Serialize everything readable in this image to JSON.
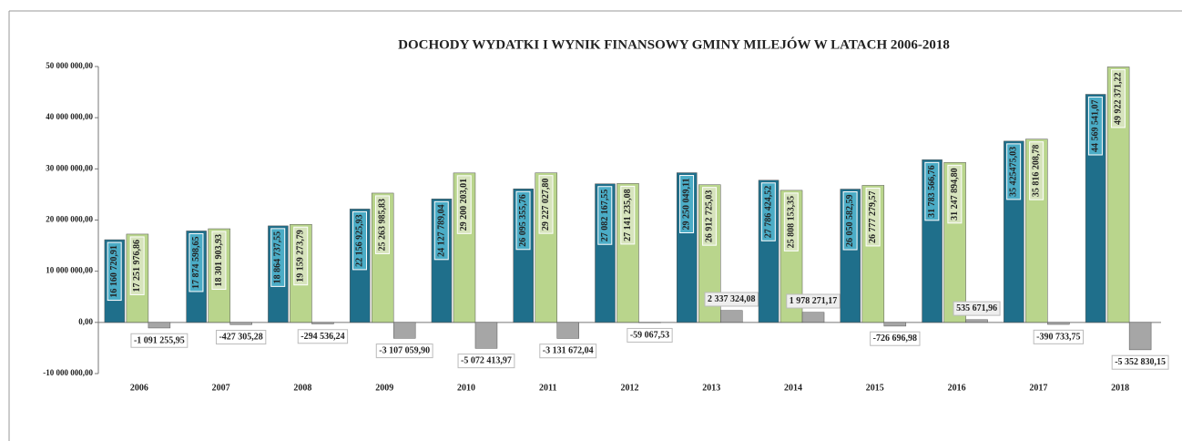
{
  "chart_data": {
    "type": "bar",
    "title": "DOCHODY WYDATKI I WYNIK FINANSOWY GMINY  MILEJÓW W LATACH 2006-2018",
    "categories": [
      "2006",
      "2007",
      "2008",
      "2009",
      "2010",
      "2011",
      "2012",
      "2013",
      "2014",
      "2015",
      "2016",
      "2017",
      "2018"
    ],
    "series": [
      {
        "color": "#1f6f8b",
        "values": [
          16160720.91,
          17874598.65,
          18864737.55,
          22156925.93,
          24127789.04,
          26095355.76,
          27082167.55,
          29250049.11,
          27786424.52,
          26050582.59,
          31783566.76,
          35425475.03,
          44569541.07
        ],
        "value_labels": [
          "16 160 720,91",
          "17 874 598,65",
          "18 864 737,55",
          "22 156 925,93",
          "24 127 789,04",
          "26 095 355,76",
          "27 082 167,55",
          "29 250 049,11",
          "27 786 424,52",
          "26 050 582,59",
          "31 783 566,76",
          "35 425475,03",
          "44 569 541,07"
        ]
      },
      {
        "color": "#b9d58c",
        "values": [
          17251976.86,
          18301903.93,
          19159273.79,
          25263985.83,
          29200203.01,
          29227027.8,
          27141235.08,
          26912725.03,
          25808153.35,
          26777279.57,
          31247894.8,
          35816208.78,
          49922371.22
        ],
        "value_labels": [
          "17 251 976,86",
          "18 301 903,93",
          "19 159 273,79",
          "25 263 985,83",
          "29 200 203,01",
          "29 227 027,80",
          "27 141 235,08",
          "26 912 725,03",
          "25 808 153,35",
          "26 777 279,57",
          "31 247 894,80",
          "35 816 208,78",
          "49 922 371,22"
        ]
      },
      {
        "color": "#a6a6a6",
        "values": [
          -1091255.95,
          -427305.28,
          -294536.24,
          -3107059.9,
          -5072413.97,
          -3131672.04,
          -59067.53,
          2337324.08,
          1978271.17,
          -726696.98,
          535671.96,
          -390733.75,
          -5352830.15
        ],
        "value_labels": [
          "-1 091 255,95",
          "-427 305,28",
          "-294 536,24",
          "-3 107 059,90",
          "-5 072 413,97",
          "-3 131 672,04",
          "-59 067,53",
          "2 337 324,08",
          "1 978 271,17",
          "-726 696,98",
          "535 671,96",
          "-390 733,75",
          "-5 352 830,15"
        ]
      }
    ],
    "ylim": [
      -10000000,
      50000000
    ],
    "yticks": [
      {
        "value": -10000000,
        "label": "-10 000 000,00"
      },
      {
        "value": 0,
        "label": "0,00"
      },
      {
        "value": 10000000,
        "label": "10 000 000,00"
      },
      {
        "value": 20000000,
        "label": "20 000 000,00"
      },
      {
        "value": 30000000,
        "label": "30 000 000,00"
      },
      {
        "value": 40000000,
        "label": "40 000 000,00"
      },
      {
        "value": 50000000,
        "label": "50 000 000,00"
      }
    ],
    "grid": false
  }
}
